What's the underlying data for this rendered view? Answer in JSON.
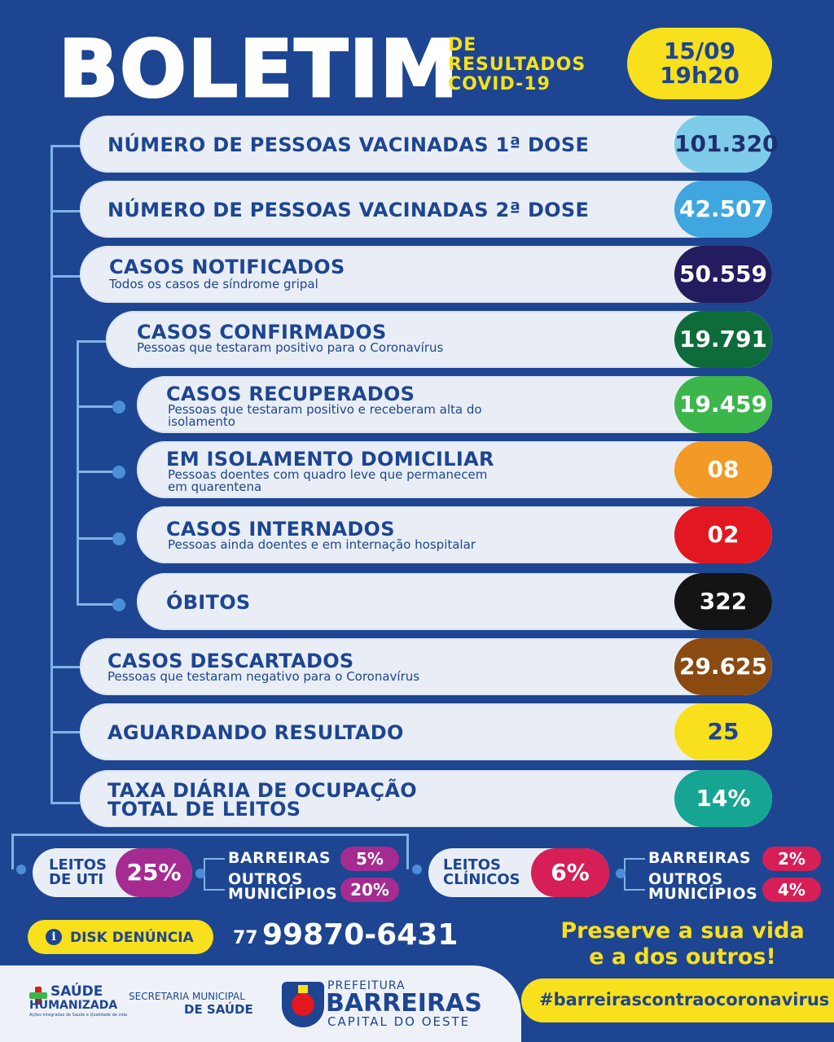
{
  "header": {
    "title": "BOLETIM",
    "sub1": "DE",
    "sub2": "RESULTADOS",
    "sub3": "COVID-19",
    "date": "15/09",
    "time": "19h20"
  },
  "rows": [
    {
      "title": "NÚMERO DE PESSOAS VACINADAS 1ª DOSE",
      "desc": "",
      "value": "101.320",
      "color": "#7fcbea",
      "value_color": "#1d2f6e"
    },
    {
      "title": "NÚMERO DE PESSOAS VACINADAS 2ª DOSE",
      "desc": "",
      "value": "42.507",
      "color": "#3fa6e0",
      "value_color": "#ffffff"
    },
    {
      "title": "CASOS NOTIFICADOS",
      "desc": "Todos os casos de síndrome gripal",
      "value": "50.559",
      "color": "#231c5f",
      "value_color": "#ffffff"
    },
    {
      "title": "CASOS CONFIRMADOS",
      "desc": "Pessoas que testaram positivo para o Coronavírus",
      "value": "19.791",
      "color": "#0e6b3a",
      "value_color": "#ffffff"
    },
    {
      "title": "CASOS RECUPERADOS",
      "desc": "Pessoas que testaram positivo e receberam alta do",
      "desc2": "isolamento",
      "value": "19.459",
      "color": "#3cb54a",
      "value_color": "#ffffff"
    },
    {
      "title": "EM ISOLAMENTO DOMICILIAR",
      "desc": "Pessoas doentes com quadro leve que permanecem",
      "desc2": "em quarentena",
      "value": "08",
      "color": "#f29a25",
      "value_color": "#ffffff"
    },
    {
      "title": "CASOS INTERNADOS",
      "desc": "Pessoas ainda doentes e em internação hospitalar",
      "value": "02",
      "color": "#e3171f",
      "value_color": "#ffffff"
    },
    {
      "title": "ÓBITOS",
      "desc": "",
      "value": "322",
      "color": "#141414",
      "value_color": "#ffffff"
    },
    {
      "title": "CASOS DESCARTADOS",
      "desc": "Pessoas que testaram negativo para o Coronavírus",
      "value": "29.625",
      "color": "#8a4a10",
      "value_color": "#ffffff"
    },
    {
      "title": "AGUARDANDO RESULTADO",
      "desc": "",
      "value": "25",
      "color": "#f9e01c",
      "value_color": "#1d4591"
    },
    {
      "title": "TAXA DIÁRIA DE OCUPAÇÃO",
      "title2": "TOTAL DE LEITOS",
      "desc": "",
      "value": "14%",
      "color": "#16a592",
      "value_color": "#ffffff"
    }
  ],
  "uti": {
    "l1": "LEITOS",
    "l2": "DE UTI",
    "value": "25%",
    "color": "#a52b91",
    "b_label": "BARREIRAS",
    "b_value": "5%",
    "o_label1": "OUTROS",
    "o_label2": "MUNICÍPIOS",
    "o_value": "20%"
  },
  "clinicos": {
    "l1": "LEITOS",
    "l2": "CLÍNICOS",
    "value": "6%",
    "color": "#d61f57",
    "b_label": "BARREIRAS",
    "b_value": "2%",
    "o_label1": "OUTROS",
    "o_label2": "MUNICÍPIOS",
    "o_value": "4%"
  },
  "contact": {
    "label": "DISK DENÚNCIA",
    "ddd": "77",
    "phone": "99870-6431"
  },
  "slogan": {
    "l1": "Preserve a sua vida",
    "l2": "e a dos outros!"
  },
  "hashtag": "#barreirascontraocoronavirus",
  "footer": {
    "saude1": "SAÚDE",
    "saude2": "HUMANIZADA",
    "saude3": "Ações Integradas de Saúde e Qualidade de vida",
    "sec1": "SECRETARIA MUNICIPAL",
    "sec2": "DE SAÚDE",
    "pref1": "PREFEITURA",
    "pref2": "BARREIRAS",
    "pref3": "CAPITAL DO OESTE"
  }
}
